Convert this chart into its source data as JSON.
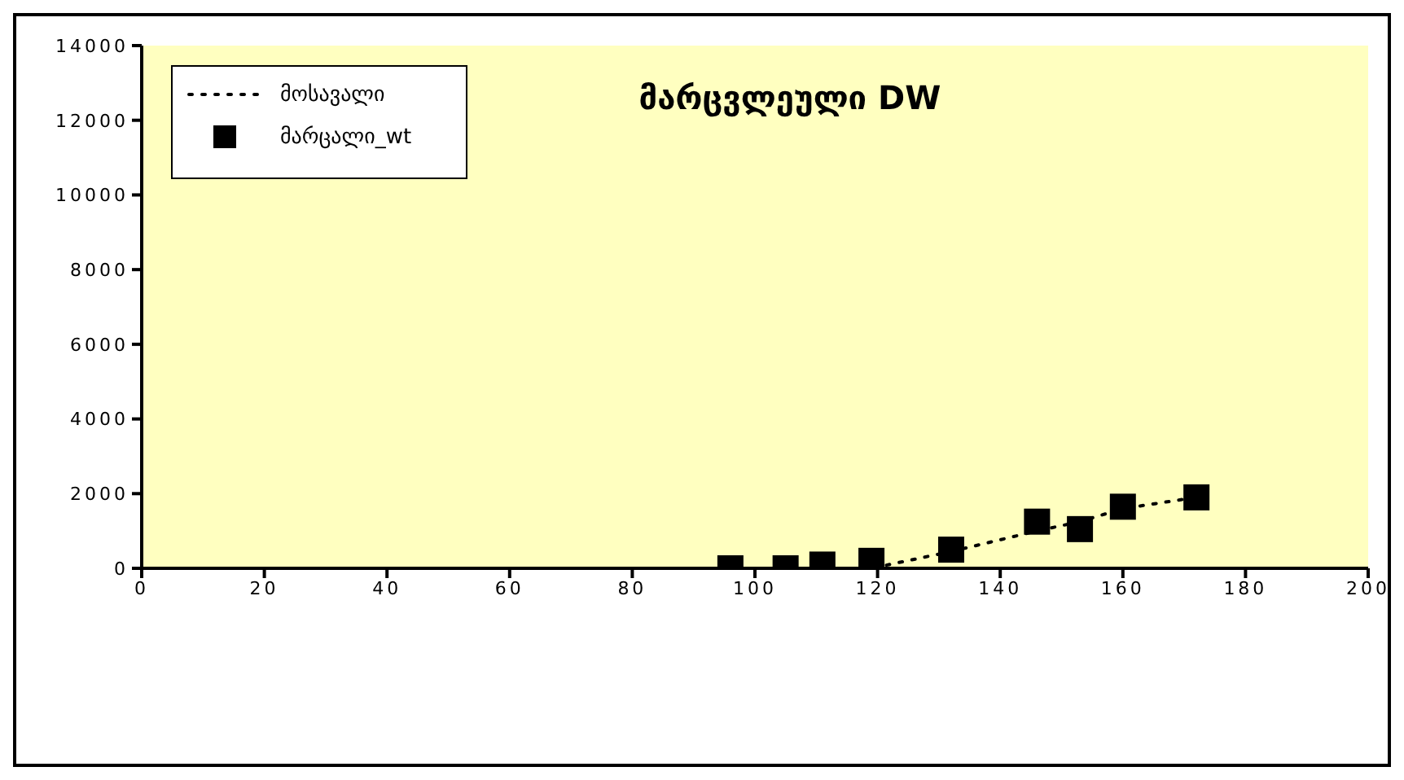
{
  "chart_data": {
    "type": "scatter",
    "title": "მარცვლეული DW",
    "series": [
      {
        "name": "მოსავალი",
        "type": "line",
        "color": "#000000",
        "line_style": "dotted",
        "marker": "none",
        "x": [
          96,
          105,
          111,
          119,
          132,
          146,
          153,
          160,
          172
        ],
        "values": [
          0,
          0,
          0,
          0,
          450,
          1000,
          1250,
          1600,
          1900
        ]
      },
      {
        "name": "მარცალი_wt",
        "color": "#000000",
        "marker": "square",
        "x": [
          96,
          105,
          111,
          119,
          132,
          146,
          153,
          160,
          172
        ],
        "values": [
          0,
          0,
          100,
          200,
          500,
          1250,
          1050,
          1650,
          1900
        ]
      }
    ],
    "xlim": [
      0,
      200
    ],
    "xticks": [
      0,
      20,
      40,
      60,
      80,
      100,
      120,
      140,
      160,
      180,
      200
    ],
    "ylim": [
      0,
      14000
    ],
    "yticks": [
      0,
      2000,
      4000,
      6000,
      8000,
      10000,
      12000,
      14000
    ],
    "grid": false,
    "legend": "top left"
  }
}
